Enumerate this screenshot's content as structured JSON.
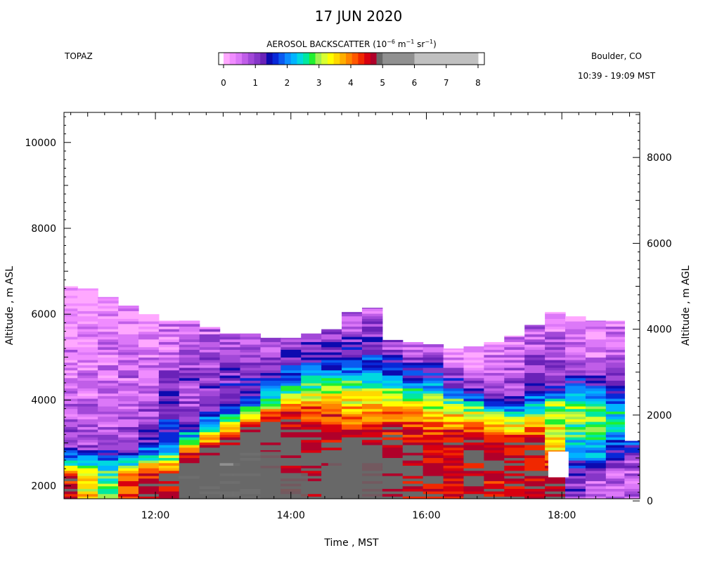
{
  "chart_data": {
    "type": "heatmap",
    "title": "17 JUN 2020",
    "instrument": "TOPAZ",
    "location": "Boulder, CO",
    "time_range": "10:39 - 19:09 MST",
    "colorbar": {
      "label_main": "AEROSOL BACKSCATTER (10",
      "label_exp1": "−6",
      "label_mid": " m",
      "label_exp2": "−1",
      "label_mid2": " sr",
      "label_exp3": "−1",
      "label_end": ")",
      "range": [
        0,
        8
      ],
      "tick_labels": [
        "0",
        "1",
        "2",
        "3",
        "4",
        "5",
        "6",
        "7",
        "8"
      ],
      "colors": [
        "#ffffff",
        "#ffa8ff",
        "#f08cff",
        "#dc78f8",
        "#c05ee8",
        "#a248d8",
        "#8636c8",
        "#6a22b8",
        "#0c0ab0",
        "#0828d8",
        "#0a5af0",
        "#0a8cff",
        "#00b4ff",
        "#00d8e0",
        "#00e8a0",
        "#20f030",
        "#a0f050",
        "#d8ff30",
        "#ffff00",
        "#ffd800",
        "#ffae00",
        "#ff8400",
        "#ff5800",
        "#f02800",
        "#d80010",
        "#b0002a",
        "#686868",
        "#909090",
        "#c0c0c0"
      ]
    },
    "x": {
      "label": "Time , MST",
      "range_hours": [
        10.65,
        19.15
      ],
      "ticks": [
        "12:00",
        "14:00",
        "16:00",
        "18:00"
      ],
      "tick_values": [
        12,
        14,
        16,
        18
      ]
    },
    "y_left": {
      "label": "Altitude , m ASL",
      "range": [
        1700,
        10700
      ],
      "ticks": [
        "2000",
        "4000",
        "6000",
        "8000",
        "10000"
      ],
      "tick_values": [
        2000,
        4000,
        6000,
        8000,
        10000
      ]
    },
    "y_right": {
      "label": "Altitude , m AGL",
      "ticks": [
        "0",
        "2000",
        "4000",
        "6000",
        "8000"
      ],
      "tick_values": [
        0,
        2000,
        4000,
        6000,
        8000
      ],
      "offset_m": 1650
    },
    "profiles": [
      {
        "t": 10.7,
        "top": 6650,
        "layers": [
          [
            2200,
            4.5
          ],
          [
            2500,
            2.8
          ],
          [
            2900,
            1.0
          ],
          [
            4000,
            0.5
          ],
          [
            5400,
            0.35
          ],
          [
            6650,
            0.1
          ]
        ]
      },
      {
        "t": 11.0,
        "top": 6600,
        "layers": [
          [
            2200,
            3.5
          ],
          [
            2500,
            2.6
          ],
          [
            2900,
            0.95
          ],
          [
            4000,
            0.55
          ],
          [
            5400,
            0.35
          ],
          [
            6600,
            0.1
          ]
        ]
      },
      {
        "t": 11.3,
        "top": 6400,
        "layers": [
          [
            2100,
            2.8
          ],
          [
            2500,
            2.3
          ],
          [
            2900,
            0.95
          ],
          [
            4000,
            0.55
          ],
          [
            5400,
            0.35
          ],
          [
            6400,
            0.15
          ]
        ]
      },
      {
        "t": 11.6,
        "top": 6200,
        "layers": [
          [
            2200,
            4.2
          ],
          [
            2500,
            2.5
          ],
          [
            2900,
            1.05
          ],
          [
            4000,
            0.6
          ],
          [
            5400,
            0.4
          ],
          [
            6200,
            0.2
          ]
        ]
      },
      {
        "t": 11.9,
        "top": 6000,
        "layers": [
          [
            2300,
            4.5
          ],
          [
            2700,
            2.4
          ],
          [
            3100,
            1.1
          ],
          [
            4200,
            0.7
          ],
          [
            5400,
            0.45
          ],
          [
            6000,
            0.2
          ]
        ]
      },
      {
        "t": 12.2,
        "top": 5850,
        "layers": [
          [
            2300,
            4.8
          ],
          [
            2600,
            2.9
          ],
          [
            3100,
            1.6
          ],
          [
            4200,
            1.1
          ],
          [
            5000,
            0.6
          ],
          [
            5850,
            0.4
          ]
        ]
      },
      {
        "t": 12.5,
        "top": 5850,
        "layers": [
          [
            2200,
            5.7
          ],
          [
            2700,
            4.7
          ],
          [
            3000,
            2.8
          ],
          [
            3600,
            1.0
          ],
          [
            4800,
            0.9
          ],
          [
            5850,
            0.55
          ]
        ]
      },
      {
        "t": 12.8,
        "top": 5700,
        "layers": [
          [
            2400,
            5.7
          ],
          [
            2900,
            4.6
          ],
          [
            3300,
            2.8
          ],
          [
            3800,
            1.1
          ],
          [
            5000,
            0.8
          ],
          [
            5700,
            0.55
          ]
        ]
      },
      {
        "t": 13.1,
        "top": 5550,
        "layers": [
          [
            2500,
            5.8
          ],
          [
            3100,
            4.6
          ],
          [
            3500,
            2.9
          ],
          [
            3900,
            1.4
          ],
          [
            4900,
            0.95
          ],
          [
            5550,
            0.6
          ]
        ]
      },
      {
        "t": 13.4,
        "top": 5550,
        "layers": [
          [
            2800,
            5.8
          ],
          [
            3300,
            4.7
          ],
          [
            3700,
            2.8
          ],
          [
            4100,
            1.5
          ],
          [
            5000,
            1.0
          ],
          [
            5550,
            0.65
          ]
        ]
      },
      {
        "t": 13.7,
        "top": 5450,
        "layers": [
          [
            3400,
            5.2
          ],
          [
            3700,
            4.0
          ],
          [
            4000,
            2.6
          ],
          [
            4400,
            1.6
          ],
          [
            5000,
            1.1
          ],
          [
            5450,
            0.7
          ]
        ]
      },
      {
        "t": 14.0,
        "top": 5450,
        "layers": [
          [
            3200,
            5.0
          ],
          [
            3800,
            4.2
          ],
          [
            4200,
            2.7
          ],
          [
            4600,
            1.7
          ],
          [
            5100,
            1.1
          ],
          [
            5450,
            0.7
          ]
        ]
      },
      {
        "t": 14.3,
        "top": 5550,
        "layers": [
          [
            3000,
            5.0
          ],
          [
            3800,
            4.2
          ],
          [
            4200,
            2.9
          ],
          [
            4700,
            1.8
          ],
          [
            5200,
            1.1
          ],
          [
            5550,
            0.75
          ]
        ]
      },
      {
        "t": 14.6,
        "top": 5650,
        "layers": [
          [
            2500,
            5.2
          ],
          [
            3700,
            4.2
          ],
          [
            4300,
            3.0
          ],
          [
            4700,
            1.9
          ],
          [
            5300,
            1.1
          ],
          [
            5650,
            0.8
          ]
        ]
      },
      {
        "t": 14.9,
        "top": 6050,
        "layers": [
          [
            2800,
            5.2
          ],
          [
            3600,
            4.0
          ],
          [
            4200,
            3.1
          ],
          [
            4700,
            1.9
          ],
          [
            5400,
            1.1
          ],
          [
            6050,
            0.7
          ]
        ]
      },
      {
        "t": 15.2,
        "top": 6150,
        "layers": [
          [
            2800,
            5.0
          ],
          [
            3600,
            4.0
          ],
          [
            4200,
            3.2
          ],
          [
            4700,
            1.8
          ],
          [
            5400,
            1.1
          ],
          [
            6150,
            0.65
          ]
        ]
      },
      {
        "t": 15.5,
        "top": 5400,
        "layers": [
          [
            2800,
            5.1
          ],
          [
            3500,
            4.3
          ],
          [
            4100,
            3.2
          ],
          [
            4600,
            1.9
          ],
          [
            5100,
            1.1
          ],
          [
            5400,
            0.8
          ]
        ]
      },
      {
        "t": 15.8,
        "top": 5350,
        "layers": [
          [
            2900,
            4.8
          ],
          [
            3500,
            4.1
          ],
          [
            4100,
            3.0
          ],
          [
            4500,
            1.8
          ],
          [
            5000,
            1.0
          ],
          [
            5350,
            0.6
          ]
        ]
      },
      {
        "t": 16.1,
        "top": 5300,
        "layers": [
          [
            3000,
            4.7
          ],
          [
            3500,
            3.9
          ],
          [
            4100,
            2.8
          ],
          [
            4500,
            1.5
          ],
          [
            5000,
            0.8
          ],
          [
            5300,
            0.5
          ]
        ]
      },
      {
        "t": 16.4,
        "top": 5200,
        "layers": [
          [
            3100,
            4.6
          ],
          [
            3500,
            3.8
          ],
          [
            4000,
            2.7
          ],
          [
            4300,
            1.4
          ],
          [
            4800,
            0.6
          ],
          [
            5200,
            0.2
          ]
        ]
      },
      {
        "t": 16.7,
        "top": 5250,
        "layers": [
          [
            3000,
            4.7
          ],
          [
            3500,
            3.7
          ],
          [
            3900,
            2.6
          ],
          [
            4200,
            1.3
          ],
          [
            4600,
            0.5
          ],
          [
            5250,
            0.15
          ]
        ]
      },
      {
        "t": 17.0,
        "top": 5350,
        "layers": [
          [
            3000,
            4.6
          ],
          [
            3400,
            3.6
          ],
          [
            3800,
            2.5
          ],
          [
            4100,
            1.2
          ],
          [
            4500,
            0.6
          ],
          [
            5350,
            0.3
          ]
        ]
      },
      {
        "t": 17.3,
        "top": 5500,
        "layers": [
          [
            3000,
            4.7
          ],
          [
            3300,
            3.7
          ],
          [
            3700,
            2.4
          ],
          [
            4100,
            1.1
          ],
          [
            4700,
            0.7
          ],
          [
            5500,
            0.5
          ]
        ]
      },
      {
        "t": 17.6,
        "top": 5750,
        "layers": [
          [
            3000,
            4.7
          ],
          [
            3400,
            3.7
          ],
          [
            3800,
            2.4
          ],
          [
            4300,
            1.2
          ],
          [
            5000,
            0.8
          ],
          [
            5750,
            0.55
          ]
        ]
      },
      {
        "t": 17.9,
        "top": 6050,
        "layers": [
          [
            2300,
            5.0
          ],
          [
            2800,
            3.6
          ],
          [
            3900,
            3.0
          ],
          [
            4300,
            1.4
          ],
          [
            4700,
            0.9
          ],
          [
            6050,
            0.35
          ]
        ]
      },
      {
        "t": 18.2,
        "top": 5950,
        "layers": [
          [
            2300,
            1.0
          ],
          [
            2800,
            2.3
          ],
          [
            3800,
            3.1
          ],
          [
            4400,
            1.5
          ],
          [
            4900,
            0.8
          ],
          [
            5950,
            0.3
          ]
        ]
      },
      {
        "t": 18.5,
        "top": 5850,
        "layers": [
          [
            2100,
            0.8
          ],
          [
            2700,
            2.0
          ],
          [
            3700,
            3.0
          ],
          [
            4300,
            1.5
          ],
          [
            4800,
            0.6
          ],
          [
            5850,
            0.3
          ]
        ]
      },
      {
        "t": 18.8,
        "top": 5850,
        "layers": [
          [
            2300,
            0.6
          ],
          [
            2800,
            1.5
          ],
          [
            3600,
            2.6
          ],
          [
            4300,
            1.4
          ],
          [
            4900,
            0.8
          ],
          [
            5850,
            0.3
          ]
        ]
      },
      {
        "t": 19.05,
        "top": 3050,
        "layers": [
          [
            2200,
            0.6
          ],
          [
            2600,
            1.0
          ],
          [
            3050,
            1.8
          ]
        ]
      }
    ],
    "gray_patches": [
      {
        "t0": 12.35,
        "t1": 13.15,
        "z0": 1700,
        "z1": 2350
      },
      {
        "t0": 13.15,
        "t1": 13.85,
        "z0": 1700,
        "z1": 2800
      },
      {
        "t0": 13.85,
        "t1": 14.25,
        "z0": 1700,
        "z1": 2300
      },
      {
        "t0": 14.55,
        "t1": 15.35,
        "z0": 1700,
        "z1": 2700
      }
    ],
    "missing_patches": [
      {
        "t0": 17.8,
        "t1": 18.1,
        "z0": 2200,
        "z1": 2800
      }
    ]
  }
}
